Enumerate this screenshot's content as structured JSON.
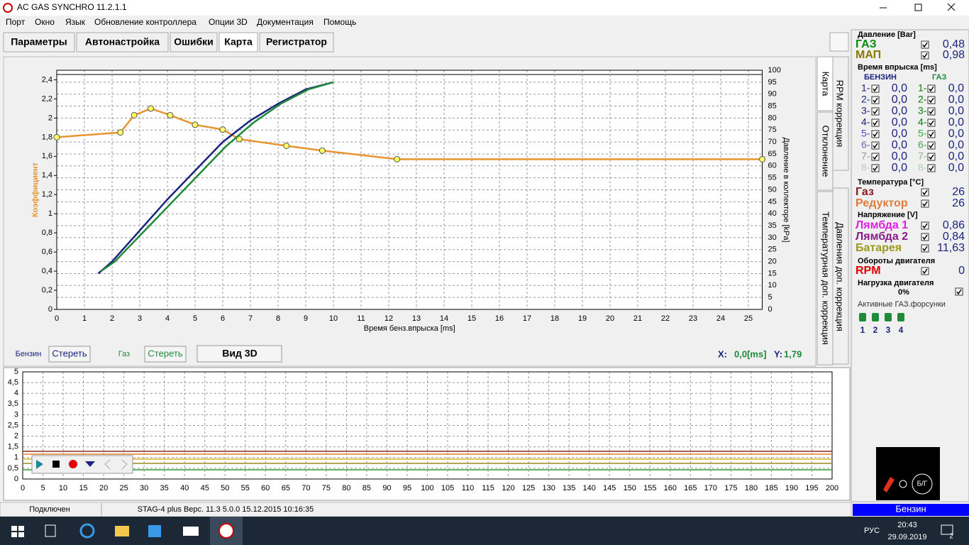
{
  "window": {
    "title": "AC GAS SYNCHRO  11.2.1.1"
  },
  "menu": [
    "Порт",
    "Окно",
    "Язык",
    "Обновление контроллера",
    "Опции 3D",
    "Документация",
    "Помощь"
  ],
  "tabs": [
    "Параметры",
    "Автонастройка",
    "Ошибки",
    "Карта",
    "Регистратор"
  ],
  "side_tabs": [
    "Карта",
    "RPM коррекция",
    "Отклонение",
    "Давления доп. коррекция",
    "Температурная доп. коррекция"
  ],
  "chart_data": [
    {
      "type": "line",
      "y_label": "Коэффициент",
      "y2_label": "Давление в коллекторе [kPa]",
      "x_label": "Время бенз.впрыска [ms]",
      "xlim": [
        0,
        25.5
      ],
      "xticks": [
        0,
        1,
        2,
        3,
        4,
        5,
        6,
        7,
        8,
        9,
        10,
        11,
        12,
        13,
        14,
        15,
        16,
        17,
        18,
        19,
        20,
        21,
        22,
        23,
        24,
        25
      ],
      "ylim": [
        0,
        2.5
      ],
      "yticks": [
        0,
        {
          "value": 0.2,
          "label": "0,2"
        },
        {
          "value": 0.4,
          "label": "0,4"
        },
        {
          "value": 0.6,
          "label": "0,6"
        },
        {
          "value": 0.8,
          "label": "0,8"
        },
        1,
        {
          "value": 1.2,
          "label": "1,2"
        },
        {
          "value": 1.4,
          "label": "1,4"
        },
        {
          "value": 1.6,
          "label": "1,6"
        },
        {
          "value": 1.8,
          "label": "1,8"
        },
        2,
        {
          "value": 2.2,
          "label": "2,2"
        },
        {
          "value": 2.4,
          "label": "2,4"
        }
      ],
      "y2lim": [
        0,
        100
      ],
      "y2ticks": [
        0,
        5,
        10,
        15,
        20,
        25,
        30,
        35,
        40,
        45,
        50,
        55,
        60,
        65,
        70,
        75,
        80,
        85,
        90,
        95,
        100
      ],
      "grid": true,
      "series": [
        {
          "color": "#e8952f",
          "marker": "circle",
          "x": [
            0,
            2.3,
            2.8,
            3.4,
            4.1,
            5,
            6,
            6.6,
            8.3,
            9.6,
            12.3,
            25.5
          ],
          "values": [
            1.8,
            1.85,
            2.03,
            2.1,
            2.03,
            1.93,
            1.88,
            1.78,
            1.71,
            1.66,
            1.57,
            1.57
          ]
        },
        {
          "color": "#1a237e",
          "axis": "y2",
          "x": [
            1.5,
            2,
            3,
            4,
            5,
            6,
            7,
            8,
            9,
            10
          ],
          "values": [
            15,
            20,
            33,
            46,
            58,
            70,
            79,
            86,
            92,
            95
          ]
        },
        {
          "color": "#1e8a3a",
          "axis": "y2",
          "x": [
            1.6,
            2.1,
            3.1,
            4.1,
            5.1,
            6.1,
            7.1,
            8.1,
            9.1,
            10
          ],
          "values": [
            16,
            20,
            32,
            44,
            56,
            68,
            78,
            86,
            92,
            95
          ]
        }
      ]
    },
    {
      "type": "line",
      "xlim": [
        0,
        200
      ],
      "xticks": [
        0,
        5,
        10,
        15,
        20,
        25,
        30,
        35,
        40,
        45,
        50,
        55,
        60,
        65,
        70,
        75,
        80,
        85,
        90,
        95,
        100,
        105,
        110,
        115,
        120,
        125,
        130,
        135,
        140,
        145,
        150,
        155,
        160,
        165,
        170,
        175,
        180,
        185,
        190,
        195,
        200
      ],
      "ylim": [
        0,
        5
      ],
      "yticks": [
        0,
        {
          "value": 0.5,
          "label": "0,5"
        },
        1,
        {
          "value": 1.5,
          "label": "1,5"
        },
        2,
        {
          "value": 2.5,
          "label": "2,5"
        },
        3,
        {
          "value": 3.5,
          "label": "3,5"
        },
        4,
        {
          "value": 4.5,
          "label": "4,5"
        },
        5
      ],
      "grid": true,
      "series": [
        {
          "color": "#8b2a1a",
          "x": [
            0,
            200
          ],
          "values": [
            1.29,
            1.29
          ]
        },
        {
          "color": "#e08020",
          "x": [
            0,
            200
          ],
          "values": [
            1.16,
            1.16
          ]
        },
        {
          "color": "#d8b020",
          "x": [
            0,
            200
          ],
          "values": [
            0.93,
            0.93
          ]
        },
        {
          "color": "#9a8a20",
          "x": [
            0,
            200
          ],
          "values": [
            0.73,
            0.73
          ]
        },
        {
          "color": "#30a030",
          "x": [
            0,
            200
          ],
          "values": [
            0.43,
            0.43
          ]
        }
      ]
    }
  ],
  "controls": {
    "petrol": "Бензин",
    "clear_petrol": "Стереть",
    "gas": "Газ",
    "clear_gas": "Стереть",
    "view3d": "Вид 3D",
    "x_label": "X:",
    "x_value": "0,0[ms]",
    "y_label": "Y:",
    "y_value": "1,79"
  },
  "panel": {
    "pressure": {
      "title": "Давление [Bar]",
      "rows": [
        {
          "label": "ГАЗ",
          "value": "0,48"
        },
        {
          "label": "МАП",
          "value": "0,98"
        }
      ]
    },
    "injection": {
      "title": "Время впрыска [ms]",
      "petrol": "БЕНЗИН",
      "gas": "ГАЗ",
      "petrol_rows": [
        {
          "n": "1-",
          "v": "0,0"
        },
        {
          "n": "2-",
          "v": "0,0"
        },
        {
          "n": "3-",
          "v": "0,0"
        },
        {
          "n": "4-",
          "v": "0,0"
        },
        {
          "n": "5-",
          "v": "0,0"
        },
        {
          "n": "6-",
          "v": "0,0"
        },
        {
          "n": "7-",
          "v": "0,0"
        },
        {
          "n": "8-",
          "v": "0,0"
        }
      ],
      "gas_rows": [
        {
          "n": "1-",
          "v": "0,0"
        },
        {
          "n": "2-",
          "v": "0,0"
        },
        {
          "n": "3-",
          "v": "0,0"
        },
        {
          "n": "4-",
          "v": "0,0"
        },
        {
          "n": "5-",
          "v": "0,0"
        },
        {
          "n": "6-",
          "v": "0,0"
        },
        {
          "n": "7-",
          "v": "0,0"
        },
        {
          "n": "8-",
          "v": "0,0"
        }
      ]
    },
    "temperature": {
      "title": "Температура  [°C]",
      "rows": [
        {
          "label": "Газ",
          "value": "26"
        },
        {
          "label": "Редуктор",
          "value": "26"
        }
      ]
    },
    "voltage": {
      "title": "Напряжение [V]",
      "rows": [
        {
          "label": "Лямбда 1",
          "value": "0,86"
        },
        {
          "label": "Лямбда 2",
          "value": "0,84"
        },
        {
          "label": "Батарея",
          "value": "11,63"
        }
      ]
    },
    "rpm": {
      "title": "Обороты двигателя",
      "label": "RPM",
      "value": "0"
    },
    "load": {
      "title": "Нагрузка двигателя",
      "value": "0%"
    },
    "injectors": {
      "title": "Активные ГАЗ.форсунки",
      "items": [
        "1",
        "2",
        "3",
        "4"
      ]
    },
    "gauge": "Б/Г",
    "fuel": "Бензин"
  },
  "status": {
    "connection": "Подключен",
    "device": "STAG-4 plus   Верс. 11.3  5.0.0    15.12.2015 10:16:35"
  },
  "taskbar": {
    "lang": "РУС",
    "time": "20:43",
    "date": "29.09.2019",
    "notifications": "2"
  }
}
